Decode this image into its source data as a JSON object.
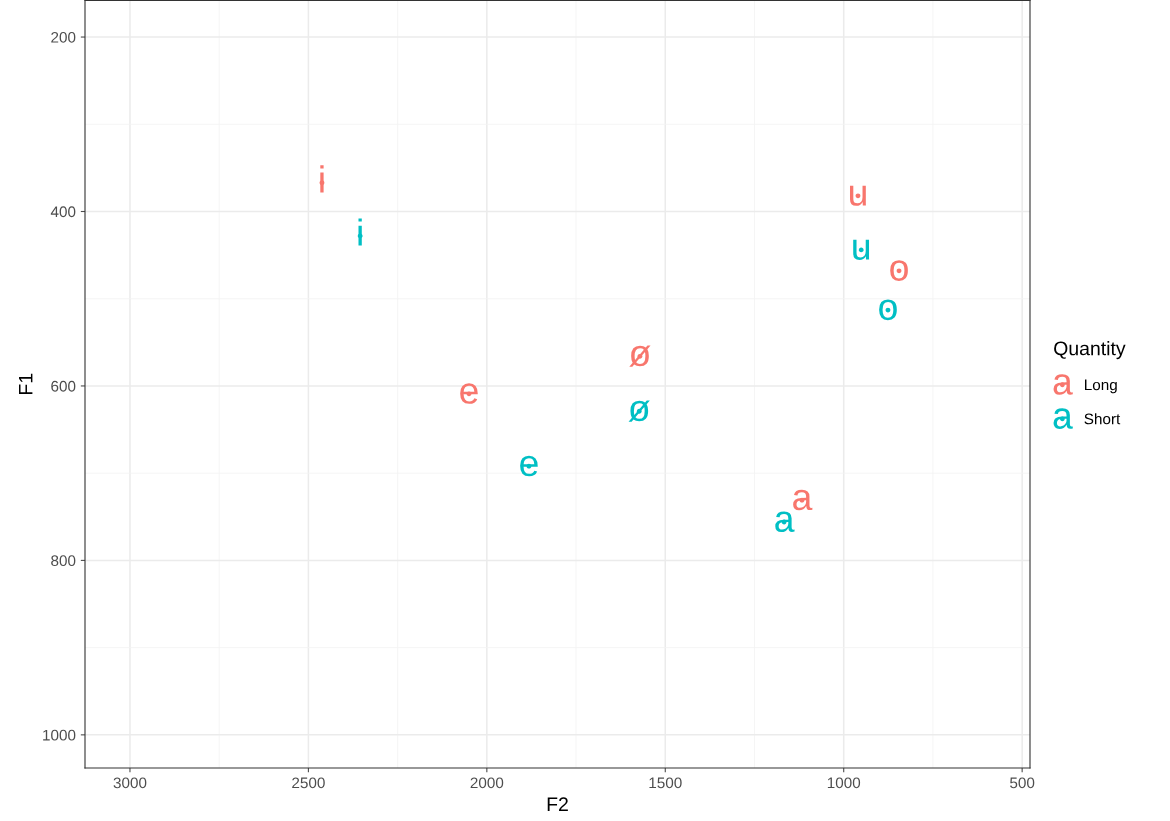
{
  "chart_data": {
    "type": "scatter",
    "xlabel": "F2",
    "ylabel": "F1",
    "legend_title": "Quantity",
    "legend": "right",
    "grid": true,
    "marker": "circle",
    "xlim": [
      3126,
      478
    ],
    "ylim": [
      1038,
      158
    ],
    "xticks": [
      3000,
      2500,
      2000,
      1500,
      1000,
      500
    ],
    "yticks": [
      200,
      400,
      600,
      800,
      1000
    ],
    "series": [
      {
        "name": "Long",
        "color": "#f8766d",
        "x": [
          2462,
          960,
          845,
          1571,
          2050,
          1117
        ],
        "values": [
          367,
          382,
          468,
          566,
          609,
          731
        ],
        "value_labels": [
          "i",
          "u",
          "o",
          "ø",
          "e",
          "a"
        ]
      },
      {
        "name": "Short",
        "color": "#00bfc4",
        "x": [
          2355,
          951,
          876,
          1573,
          1882,
          1167
        ],
        "values": [
          428,
          444,
          513,
          629,
          692,
          756
        ],
        "value_labels": [
          "i",
          "u",
          "o",
          "ø",
          "e",
          "a"
        ]
      }
    ]
  }
}
